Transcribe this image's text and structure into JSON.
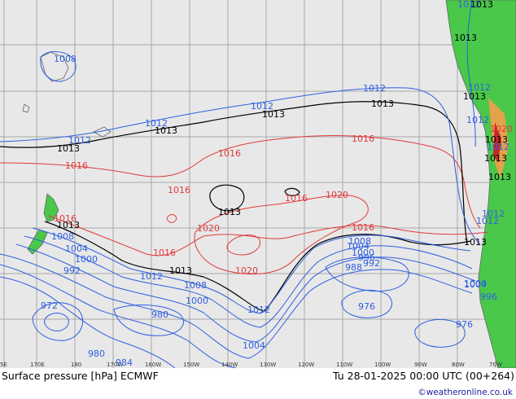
{
  "map": {
    "title": "Surface pressure [hPa] ECMWF",
    "valid_time": "Tu 28-01-2025 00:00 UTC (00+264)",
    "credit": "©weatheronline.co.uk",
    "colors": {
      "low_isobar": "#2f5fe0",
      "high_isobar": "#e03a3a",
      "ref_isobar": "#000000",
      "land": "#49c84a",
      "ocean": "#e8e8e8"
    },
    "longitude_ticks": [
      "5E",
      "170E",
      "180",
      "170W",
      "160W",
      "150W",
      "140W",
      "130W",
      "120W",
      "110W",
      "100W",
      "90W",
      "80W",
      "70W"
    ],
    "isobar_labels": {
      "blue": [
        {
          "text": "1008"
        },
        {
          "text": "1012"
        },
        {
          "text": "1012"
        },
        {
          "text": "1012"
        },
        {
          "text": "1012"
        },
        {
          "text": "1012"
        },
        {
          "text": "1012"
        },
        {
          "text": "1008"
        },
        {
          "text": "1004"
        },
        {
          "text": "1000"
        },
        {
          "text": "992"
        },
        {
          "text": "972"
        },
        {
          "text": "1012"
        },
        {
          "text": "1008"
        },
        {
          "text": "1000"
        },
        {
          "text": "980"
        },
        {
          "text": "980"
        },
        {
          "text": "984"
        },
        {
          "text": "1004"
        },
        {
          "text": "1012"
        },
        {
          "text": "1008"
        },
        {
          "text": "1004"
        },
        {
          "text": "1000"
        },
        {
          "text": "996"
        },
        {
          "text": "992"
        },
        {
          "text": "988"
        },
        {
          "text": "976"
        },
        {
          "text": "976"
        },
        {
          "text": "1000"
        },
        {
          "text": "996"
        },
        {
          "text": "1004"
        },
        {
          "text": "1012"
        },
        {
          "text": "1012"
        },
        {
          "text": "1012"
        },
        {
          "text": "1012"
        }
      ],
      "red": [
        {
          "text": "1016"
        },
        {
          "text": "1016"
        },
        {
          "text": "1016"
        },
        {
          "text": "1016"
        },
        {
          "text": "1016"
        },
        {
          "text": "1020"
        },
        {
          "text": "1020"
        },
        {
          "text": "1016"
        },
        {
          "text": "1020"
        },
        {
          "text": "1016"
        },
        {
          "text": "1016"
        },
        {
          "text": "1020"
        }
      ],
      "black": [
        {
          "text": "1013"
        },
        {
          "text": "1013"
        },
        {
          "text": "1013"
        },
        {
          "text": "1013"
        },
        {
          "text": "1013"
        },
        {
          "text": "1013"
        },
        {
          "text": "1013"
        },
        {
          "text": "1013"
        },
        {
          "text": "1013"
        },
        {
          "text": "1013"
        },
        {
          "text": "1013"
        },
        {
          "text": "1013"
        },
        {
          "text": "1013"
        },
        {
          "text": "1013"
        }
      ]
    }
  }
}
